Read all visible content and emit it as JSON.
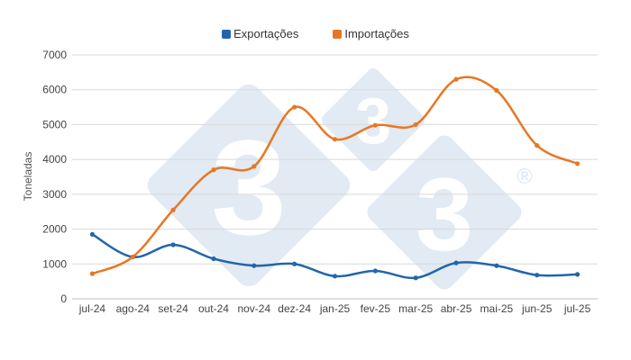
{
  "legend": {
    "items": [
      {
        "label": "Exportações",
        "color": "#2166ac"
      },
      {
        "label": "Importações",
        "color": "#e87722"
      }
    ]
  },
  "watermark": {
    "glyph": "3",
    "registered": "®",
    "color": "#e2eaf3"
  },
  "chart_data": {
    "type": "line",
    "title": "",
    "xlabel": "",
    "ylabel": "Toneladas",
    "ylim": [
      0,
      7000
    ],
    "yticks": [
      0,
      1000,
      2000,
      3000,
      4000,
      5000,
      6000,
      7000
    ],
    "grid": true,
    "legend_position": "top",
    "smooth": true,
    "categories": [
      "jul-24",
      "ago-24",
      "set-24",
      "out-24",
      "nov-24",
      "dez-24",
      "jan-25",
      "fev-25",
      "mar-25",
      "abr-25",
      "mai-25",
      "jun-25",
      "jul-25"
    ],
    "series": [
      {
        "name": "Exportações",
        "color": "#2166ac",
        "values": [
          1850,
          1200,
          1550,
          1150,
          950,
          1000,
          650,
          800,
          600,
          1030,
          950,
          680,
          700
        ]
      },
      {
        "name": "Importações",
        "color": "#e87722",
        "values": [
          720,
          1200,
          2550,
          3700,
          3800,
          5500,
          4580,
          4980,
          5000,
          6300,
          5980,
          4400,
          3880
        ]
      }
    ]
  }
}
